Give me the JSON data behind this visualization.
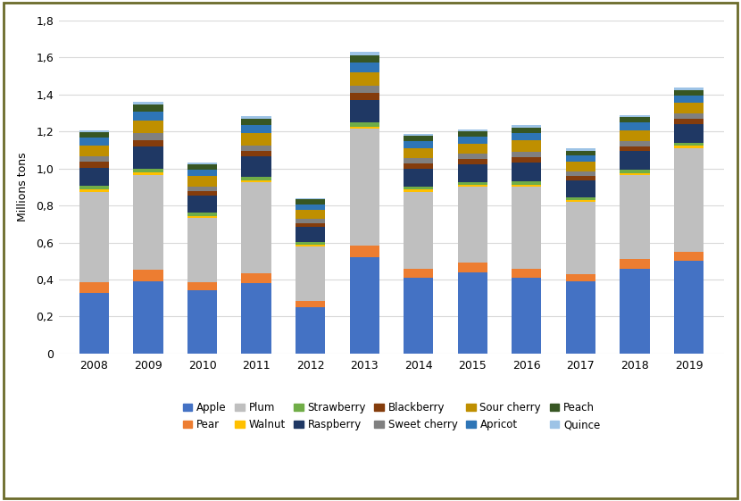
{
  "years": [
    2008,
    2009,
    2010,
    2011,
    2012,
    2013,
    2014,
    2015,
    2016,
    2017,
    2018,
    2019
  ],
  "categories": [
    "Apple",
    "Pear",
    "Plum",
    "Walnut",
    "Strawberry",
    "Raspberry",
    "Blackberry",
    "Sweet cherry",
    "Sour cherry",
    "Apricot",
    "Peach",
    "Quince"
  ],
  "colors": [
    "#4472c4",
    "#ed7d31",
    "#bfbfbf",
    "#ffc000",
    "#70ad47",
    "#1f3864",
    "#843c0c",
    "#808080",
    "#bf8f00",
    "#2e75b6",
    "#375623",
    "#9dc3e6"
  ],
  "values": {
    "Apple": [
      0.33,
      0.39,
      0.34,
      0.38,
      0.25,
      0.52,
      0.41,
      0.44,
      0.41,
      0.39,
      0.46,
      0.5
    ],
    "Pear": [
      0.055,
      0.065,
      0.045,
      0.055,
      0.035,
      0.065,
      0.05,
      0.05,
      0.05,
      0.04,
      0.05,
      0.05
    ],
    "Plum": [
      0.49,
      0.51,
      0.35,
      0.49,
      0.295,
      0.63,
      0.415,
      0.41,
      0.44,
      0.39,
      0.455,
      0.56
    ],
    "Walnut": [
      0.01,
      0.012,
      0.01,
      0.01,
      0.008,
      0.012,
      0.01,
      0.01,
      0.012,
      0.01,
      0.01,
      0.012
    ],
    "Strawberry": [
      0.02,
      0.022,
      0.018,
      0.02,
      0.015,
      0.022,
      0.018,
      0.018,
      0.02,
      0.016,
      0.018,
      0.018
    ],
    "Raspberry": [
      0.1,
      0.12,
      0.09,
      0.11,
      0.08,
      0.12,
      0.095,
      0.095,
      0.1,
      0.09,
      0.1,
      0.1
    ],
    "Blackberry": [
      0.03,
      0.035,
      0.025,
      0.03,
      0.022,
      0.038,
      0.028,
      0.028,
      0.03,
      0.025,
      0.028,
      0.028
    ],
    "Sweet cherry": [
      0.03,
      0.035,
      0.025,
      0.03,
      0.022,
      0.038,
      0.028,
      0.028,
      0.03,
      0.025,
      0.028,
      0.028
    ],
    "Sour cherry": [
      0.06,
      0.07,
      0.055,
      0.065,
      0.048,
      0.075,
      0.055,
      0.055,
      0.06,
      0.05,
      0.058,
      0.058
    ],
    "Apricot": [
      0.04,
      0.048,
      0.036,
      0.044,
      0.032,
      0.052,
      0.038,
      0.038,
      0.04,
      0.035,
      0.04,
      0.04
    ],
    "Peach": [
      0.03,
      0.038,
      0.028,
      0.035,
      0.025,
      0.04,
      0.028,
      0.028,
      0.03,
      0.026,
      0.03,
      0.03
    ],
    "Quince": [
      0.011,
      0.014,
      0.01,
      0.012,
      0.009,
      0.016,
      0.01,
      0.01,
      0.012,
      0.01,
      0.011,
      0.011
    ]
  },
  "ylabel": "Millions tons",
  "ylim": [
    0,
    1.8
  ],
  "yticks": [
    0.0,
    0.2,
    0.4,
    0.6,
    0.8,
    1.0,
    1.2,
    1.4,
    1.6,
    1.8
  ],
  "ytick_labels": [
    "0",
    "0,2",
    "0,4",
    "0,6",
    "0,8",
    "1,0",
    "1,2",
    "1,4",
    "1,6",
    "1,8"
  ],
  "background_color": "#ffffff",
  "grid_color": "#d9d9d9",
  "bar_width": 0.55,
  "border_color": "#6b6b2a"
}
